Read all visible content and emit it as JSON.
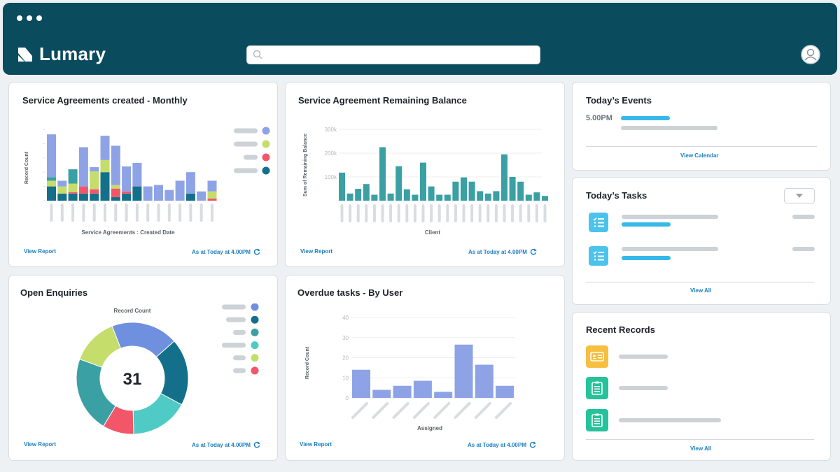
{
  "app": {
    "logo_text": "Lumary",
    "search_placeholder": ""
  },
  "colors": {
    "header_bg": "#0a4b5e",
    "link": "#1a7fc1",
    "accent_blue": "#36b9e8",
    "bar_periwinkle": "#8ea3e6",
    "bar_green": "#c4dd6b",
    "bar_red": "#f25668",
    "bar_darkteal": "#14708a",
    "bar_teal": "#3aa0a4"
  },
  "cards": {
    "monthly": {
      "title": "Service Agreements created - Monthly",
      "view_report": "View Report",
      "as_at": "As at Today at 4.00PM"
    },
    "balance": {
      "title": "Service Agreement Remaining Balance",
      "view_report": "View Report",
      "as_at": "As at Today at 4.00PM"
    },
    "enquiries": {
      "title": "Open Enquiries",
      "view_report": "View Report",
      "as_at": "As at Today at 4.00PM"
    },
    "overdue": {
      "title": "Overdue tasks - By User",
      "view_report": "View Report",
      "as_at": "As at Today at 4.00PM"
    },
    "events": {
      "title": "Today’s Events",
      "time": "5.00PM",
      "view_calendar": "View Calendar"
    },
    "tasks": {
      "title": "Today’s Tasks",
      "view_all": "View All"
    },
    "records": {
      "title": "Recent Records",
      "view_all": "View All"
    }
  },
  "chart_data": [
    {
      "id": "monthly",
      "type": "bar",
      "stacked": true,
      "title": "Service Agreements created - Monthly",
      "xlabel": "Service Agreements : Created Date",
      "ylabel": "Record Count",
      "ylim": [
        0,
        10
      ],
      "tick_labels_hidden": true,
      "series": [
        {
          "name": "",
          "color": "#14708a",
          "values": [
            2,
            1,
            1,
            1,
            1,
            4,
            0.5,
            1,
            2,
            0,
            0,
            0,
            0,
            1,
            0,
            0
          ]
        },
        {
          "name": "",
          "color": "#f25668",
          "values": [
            0,
            0,
            0.2,
            1,
            0.6,
            0,
            1.2,
            0.3,
            0,
            0,
            0,
            0,
            0,
            0,
            0,
            0.3
          ]
        },
        {
          "name": "",
          "color": "#c4dd6b",
          "values": [
            0.8,
            1,
            1.2,
            0,
            2.5,
            1.7,
            0.5,
            0,
            0,
            0,
            0,
            0,
            0,
            0,
            0,
            1
          ]
        },
        {
          "name": "",
          "color": "#3aa0a4",
          "values": [
            0.5,
            0,
            2,
            0,
            0,
            0,
            0,
            0,
            0,
            0,
            0,
            0,
            0,
            0,
            0,
            0
          ]
        },
        {
          "name": "",
          "color": "#8ea3e6",
          "values": [
            6,
            0.8,
            0,
            5.5,
            0.6,
            3.4,
            5.5,
            3.5,
            3.3,
            2,
            2.2,
            1.5,
            2.8,
            3,
            1.3,
            1.5
          ]
        }
      ],
      "legend_colors": [
        "#8ea3e6",
        "#c4dd6b",
        "#f25668",
        "#14708a"
      ]
    },
    {
      "id": "balance",
      "type": "bar",
      "title": "Service Agreement Remaining Balance",
      "xlabel": "Client",
      "ylabel": "Sum of Remaining Balance",
      "y_ticks": [
        "300k",
        "200k",
        "100k"
      ],
      "ylim": [
        0,
        300000
      ],
      "tick_labels_hidden": true,
      "color": "#3aa0a4",
      "values": [
        118000,
        30000,
        50000,
        70000,
        25000,
        225000,
        30000,
        145000,
        48000,
        25000,
        160000,
        60000,
        25000,
        25000,
        80000,
        98000,
        80000,
        40000,
        30000,
        40000,
        195000,
        100000,
        80000,
        25000,
        35000,
        20000
      ]
    },
    {
      "id": "enquiries",
      "type": "pie",
      "donut": true,
      "title": "Open Enquiries",
      "subtitle": "Record Count",
      "center_label": "31",
      "slices": [
        {
          "value": 6,
          "color": "#6f8fdf"
        },
        {
          "value": 6,
          "color": "#14708a"
        },
        {
          "value": 5.2,
          "color": "#4fcac4"
        },
        {
          "value": 2.8,
          "color": "#f25668"
        },
        {
          "value": 6.8,
          "color": "#3aa0a4"
        },
        {
          "value": 4.2,
          "color": "#c4dd6b"
        }
      ],
      "legend_colors": [
        "#6f8fdf",
        "#14708a",
        "#3aa0a4",
        "#4fcac4",
        "#c4dd6b",
        "#f25668"
      ]
    },
    {
      "id": "overdue",
      "type": "bar",
      "title": "Overdue tasks - By User",
      "xlabel": "Assigned",
      "ylabel": "Record Count",
      "ylim": [
        0,
        40
      ],
      "y_ticks": [
        "0",
        "10",
        "20",
        "30",
        "40"
      ],
      "tick_labels_hidden": true,
      "color": "#8ea3e6",
      "values": [
        14,
        4,
        6,
        8.5,
        3,
        26.5,
        16.5,
        6
      ]
    }
  ]
}
